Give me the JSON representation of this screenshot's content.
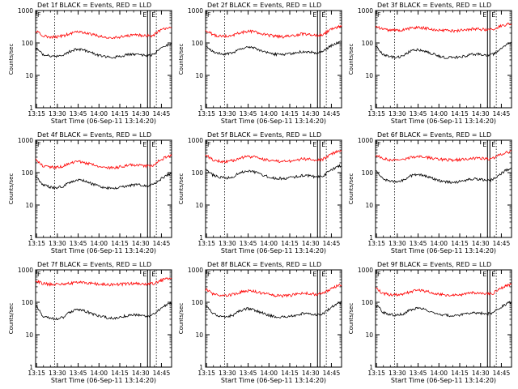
{
  "common": {
    "xlabel": "Start Time (06-Sep-11 13:14:20)",
    "ylabel": "Counts/sec",
    "x_ticks": [
      "13:15",
      "13:30",
      "13:45",
      "14:00",
      "14:15",
      "14:30",
      "14:45"
    ],
    "y_ticks": [
      "1",
      "10",
      "100",
      "1000"
    ],
    "marker_labels": [
      "F",
      "E",
      "E"
    ],
    "colors": {
      "events": "#000000",
      "lld": "#ff0000",
      "axes": "#000000"
    }
  },
  "chart_data": [
    {
      "type": "line",
      "title": "Det 1f BLACK = Events, RED = LLD",
      "yscale": "log",
      "ylim": [
        1,
        1000
      ],
      "x": [
        0,
        5,
        10,
        15,
        20,
        25,
        30,
        35,
        40,
        45,
        50,
        55,
        60,
        65,
        70,
        75,
        80,
        85,
        90,
        95,
        98
      ],
      "series": [
        {
          "name": "LLD",
          "values": [
            230,
            170,
            155,
            150,
            165,
            195,
            220,
            210,
            185,
            165,
            150,
            145,
            150,
            165,
            180,
            175,
            165,
            170,
            250,
            300,
            320
          ]
        },
        {
          "name": "Events",
          "values": [
            70,
            45,
            40,
            38,
            42,
            55,
            65,
            60,
            50,
            42,
            38,
            36,
            38,
            42,
            45,
            44,
            40,
            45,
            65,
            85,
            95
          ]
        }
      ]
    },
    {
      "type": "line",
      "title": "Det 2f BLACK = Events, RED = LLD",
      "yscale": "log",
      "ylim": [
        1,
        1000
      ],
      "x": [
        0,
        5,
        10,
        15,
        20,
        25,
        30,
        35,
        40,
        45,
        50,
        55,
        60,
        65,
        70,
        75,
        80,
        85,
        90,
        95,
        98
      ],
      "series": [
        {
          "name": "LLD",
          "values": [
            250,
            180,
            165,
            160,
            175,
            205,
            230,
            220,
            195,
            175,
            160,
            155,
            160,
            175,
            190,
            185,
            175,
            180,
            260,
            310,
            340
          ]
        },
        {
          "name": "Events",
          "values": [
            85,
            55,
            48,
            45,
            50,
            65,
            75,
            70,
            58,
            50,
            45,
            43,
            45,
            50,
            55,
            53,
            48,
            55,
            80,
            100,
            110
          ]
        }
      ]
    },
    {
      "type": "line",
      "title": "Det 3f BLACK = Events, RED = LLD",
      "yscale": "log",
      "ylim": [
        1,
        1000
      ],
      "x": [
        0,
        5,
        10,
        15,
        20,
        25,
        30,
        35,
        40,
        45,
        50,
        55,
        60,
        65,
        70,
        75,
        80,
        85,
        90,
        95,
        98
      ],
      "series": [
        {
          "name": "LLD",
          "values": [
            330,
            270,
            245,
            240,
            255,
            280,
            300,
            290,
            265,
            250,
            240,
            235,
            240,
            255,
            270,
            265,
            255,
            260,
            330,
            380,
            400
          ]
        },
        {
          "name": "Events",
          "values": [
            80,
            45,
            38,
            35,
            40,
            55,
            62,
            58,
            48,
            40,
            36,
            35,
            37,
            40,
            45,
            44,
            40,
            45,
            65,
            90,
            100
          ]
        }
      ]
    },
    {
      "type": "line",
      "title": "Det 4f BLACK = Events, RED = LLD",
      "yscale": "log",
      "ylim": [
        1,
        1000
      ],
      "x": [
        0,
        5,
        10,
        15,
        20,
        25,
        30,
        35,
        40,
        45,
        50,
        55,
        60,
        65,
        70,
        75,
        80,
        85,
        90,
        95,
        98
      ],
      "series": [
        {
          "name": "LLD",
          "values": [
            250,
            165,
            150,
            145,
            160,
            190,
            215,
            205,
            180,
            160,
            148,
            143,
            148,
            160,
            175,
            170,
            160,
            170,
            250,
            310,
            330
          ]
        },
        {
          "name": "Events",
          "values": [
            75,
            42,
            36,
            34,
            38,
            52,
            60,
            56,
            46,
            38,
            34,
            33,
            35,
            38,
            42,
            41,
            38,
            43,
            62,
            85,
            95
          ]
        }
      ]
    },
    {
      "type": "line",
      "title": "Det 5f BLACK = Events, RED = LLD",
      "yscale": "log",
      "ylim": [
        1,
        1000
      ],
      "x": [
        0,
        5,
        10,
        15,
        20,
        25,
        30,
        35,
        40,
        45,
        50,
        55,
        60,
        65,
        70,
        75,
        80,
        85,
        90,
        95,
        98
      ],
      "series": [
        {
          "name": "LLD",
          "values": [
            350,
            250,
            225,
            220,
            240,
            280,
            320,
            300,
            265,
            240,
            225,
            218,
            225,
            240,
            265,
            260,
            245,
            260,
            360,
            450,
            480
          ]
        },
        {
          "name": "Events",
          "values": [
            130,
            85,
            72,
            68,
            75,
            100,
            115,
            105,
            88,
            75,
            68,
            65,
            68,
            75,
            82,
            80,
            72,
            80,
            115,
            150,
            165
          ]
        }
      ]
    },
    {
      "type": "line",
      "title": "Det 6f BLACK = Events, RED = LLD",
      "yscale": "log",
      "ylim": [
        1,
        1000
      ],
      "x": [
        0,
        5,
        10,
        15,
        20,
        25,
        30,
        35,
        40,
        45,
        50,
        55,
        60,
        65,
        70,
        75,
        80,
        85,
        90,
        95,
        98
      ],
      "series": [
        {
          "name": "LLD",
          "values": [
            350,
            270,
            250,
            245,
            260,
            290,
            320,
            305,
            280,
            260,
            250,
            245,
            250,
            260,
            280,
            275,
            265,
            275,
            360,
            420,
            440
          ]
        },
        {
          "name": "Events",
          "values": [
            120,
            65,
            55,
            52,
            58,
            78,
            88,
            82,
            68,
            58,
            52,
            50,
            52,
            58,
            64,
            62,
            56,
            62,
            90,
            125,
            140
          ]
        }
      ]
    },
    {
      "type": "line",
      "title": "Det 7f BLACK = Events, RED = LLD",
      "yscale": "log",
      "ylim": [
        1,
        1000
      ],
      "x": [
        0,
        5,
        10,
        15,
        20,
        25,
        30,
        35,
        40,
        45,
        50,
        55,
        60,
        65,
        70,
        75,
        80,
        85,
        90,
        95,
        98
      ],
      "series": [
        {
          "name": "LLD",
          "values": [
            450,
            380,
            360,
            355,
            370,
            390,
            410,
            400,
            380,
            365,
            355,
            350,
            355,
            370,
            385,
            380,
            370,
            380,
            460,
            540,
            580
          ]
        },
        {
          "name": "Events",
          "values": [
            80,
            38,
            32,
            30,
            34,
            50,
            60,
            55,
            45,
            38,
            34,
            32,
            34,
            38,
            42,
            40,
            36,
            42,
            62,
            88,
            98
          ]
        }
      ]
    },
    {
      "type": "line",
      "title": "Det 8f BLACK = Events, RED = LLD",
      "yscale": "log",
      "ylim": [
        1,
        1000
      ],
      "x": [
        0,
        5,
        10,
        15,
        20,
        25,
        30,
        35,
        40,
        45,
        50,
        55,
        60,
        65,
        70,
        75,
        80,
        85,
        90,
        95,
        98
      ],
      "series": [
        {
          "name": "LLD",
          "values": [
            250,
            185,
            165,
            160,
            175,
            205,
            230,
            220,
            195,
            175,
            162,
            158,
            162,
            175,
            190,
            185,
            175,
            185,
            260,
            320,
            340
          ]
        },
        {
          "name": "Events",
          "values": [
            80,
            45,
            38,
            36,
            40,
            55,
            64,
            58,
            48,
            40,
            36,
            35,
            37,
            40,
            45,
            44,
            40,
            45,
            66,
            90,
            100
          ]
        }
      ]
    },
    {
      "type": "line",
      "title": "Det 9f BLACK = Events, RED = LLD",
      "yscale": "log",
      "ylim": [
        1,
        1000
      ],
      "x": [
        0,
        5,
        10,
        15,
        20,
        25,
        30,
        35,
        40,
        45,
        50,
        55,
        60,
        65,
        70,
        75,
        80,
        85,
        90,
        95,
        98
      ],
      "series": [
        {
          "name": "LLD",
          "values": [
            270,
            190,
            172,
            168,
            180,
            210,
            235,
            225,
            200,
            180,
            168,
            163,
            168,
            180,
            195,
            190,
            180,
            190,
            270,
            330,
            350
          ]
        },
        {
          "name": "Events",
          "values": [
            85,
            50,
            42,
            40,
            44,
            58,
            66,
            62,
            52,
            44,
            40,
            38,
            40,
            44,
            48,
            47,
            43,
            48,
            70,
            92,
            100
          ]
        }
      ]
    }
  ]
}
